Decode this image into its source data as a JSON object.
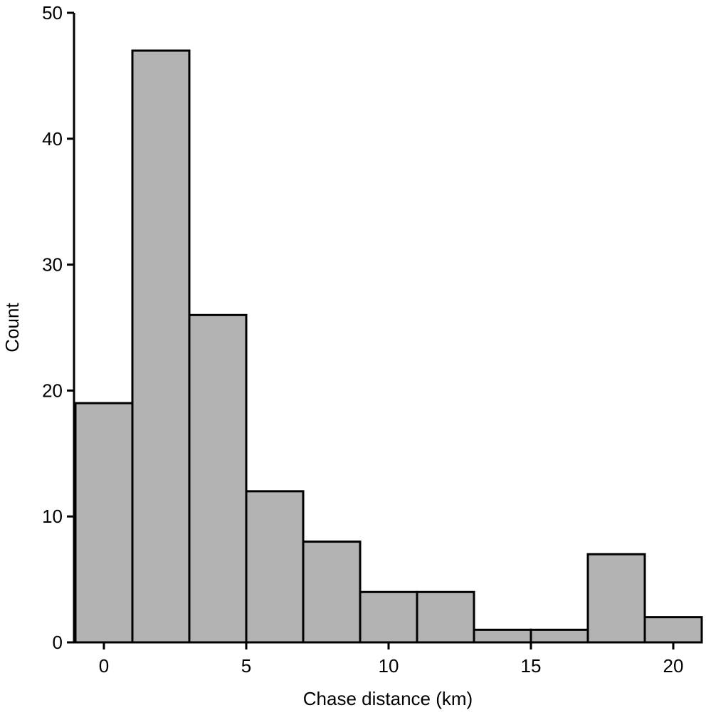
{
  "chart_data": {
    "type": "histogram",
    "x_label": "Chase distance (km)",
    "y_label": "Count",
    "bins": [
      -1,
      1,
      3,
      5,
      7,
      9,
      11,
      13,
      15,
      17,
      19,
      21
    ],
    "values": [
      19,
      47,
      26,
      12,
      8,
      4,
      4,
      1,
      1,
      7,
      2
    ],
    "color": "#b3b3b3",
    "xlim": [
      -1,
      21
    ],
    "xticks": [
      0,
      5,
      10,
      15,
      20
    ],
    "ylim": [
      0,
      50
    ],
    "yticks": [
      0,
      10,
      20,
      30,
      40,
      50
    ],
    "grid": false
  }
}
